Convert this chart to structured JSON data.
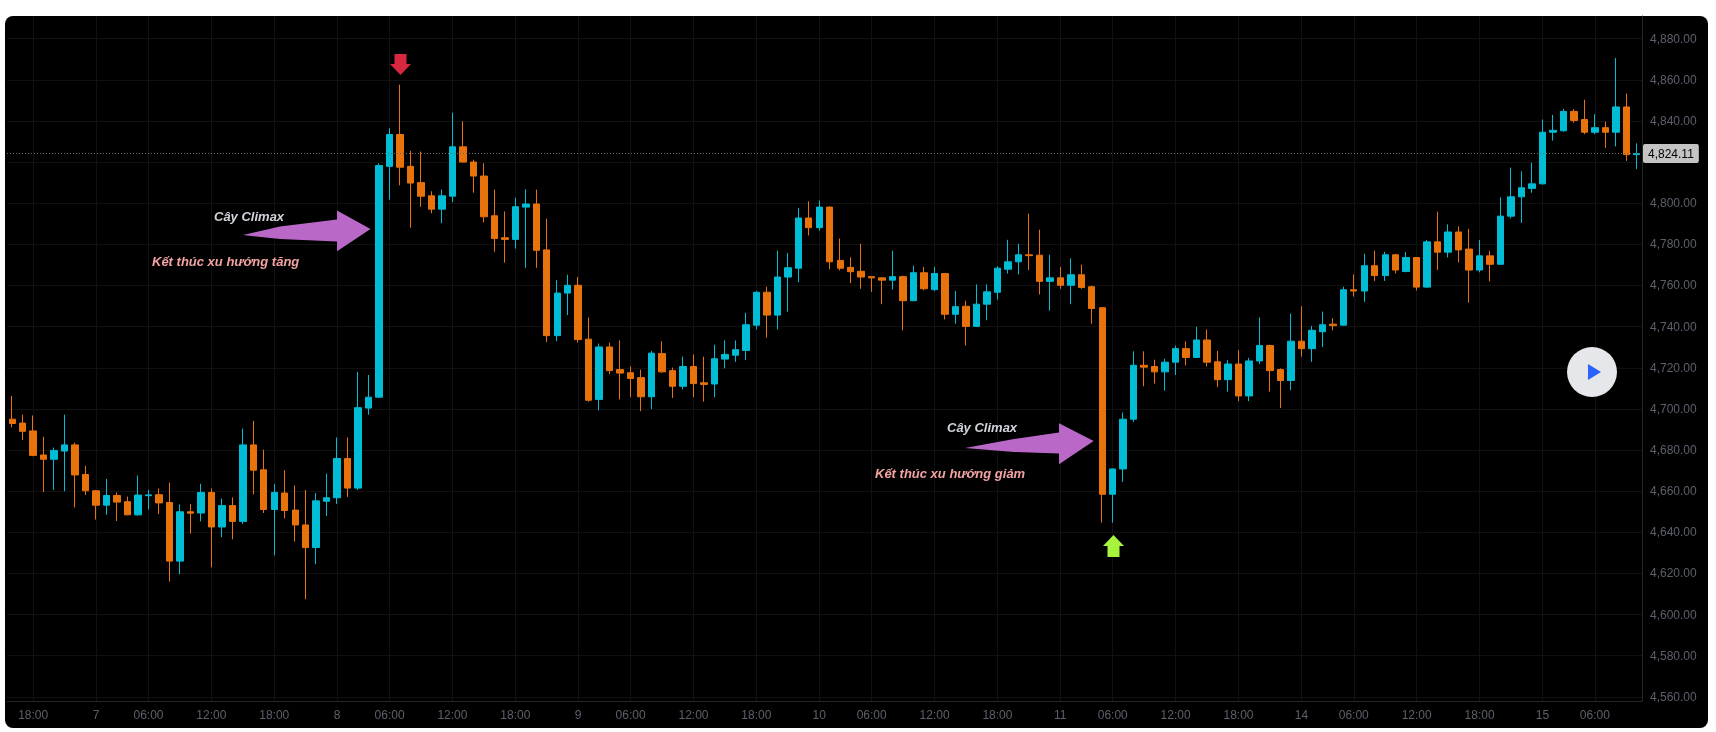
{
  "chart_data": {
    "type": "candlestick",
    "categories": [
      null,
      null,
      "18:00",
      null,
      null,
      null,
      null,
      null,
      "7",
      null,
      null,
      null,
      null,
      "06:00",
      null,
      null,
      null,
      null,
      null,
      "12:00",
      null,
      null,
      null,
      null,
      null,
      "18:00",
      null,
      null,
      null,
      null,
      null,
      "8",
      null,
      null,
      null,
      null,
      "06:00",
      null,
      null,
      null,
      null,
      null,
      "12:00",
      null,
      null,
      null,
      null,
      null,
      "18:00",
      null,
      null,
      null,
      null,
      null,
      "9",
      null,
      null,
      null,
      null,
      "06:00",
      null,
      null,
      null,
      null,
      null,
      "12:00",
      null,
      null,
      null,
      null,
      null,
      "18:00",
      null,
      null,
      null,
      null,
      null,
      "10",
      null,
      null,
      null,
      null,
      "06:00",
      null,
      null,
      null,
      null,
      null,
      "12:00",
      null,
      null,
      null,
      null,
      null,
      "18:00",
      null,
      null,
      null,
      null,
      null,
      "11",
      null,
      null,
      null,
      null,
      "06:00",
      null,
      null,
      null,
      null,
      null,
      "12:00",
      null,
      null,
      null,
      null,
      null,
      "18:00",
      null,
      null,
      null,
      null,
      null,
      "14",
      null,
      null,
      null,
      null,
      "06:00",
      null,
      null,
      null,
      null,
      null,
      "12:00",
      null,
      null,
      null,
      null,
      null,
      "18:00",
      null,
      null,
      null,
      null,
      null,
      "15",
      null,
      null,
      null,
      null,
      "06:00",
      null,
      null,
      null,
      null
    ],
    "ohlc": [
      [
        4695.0,
        4706.3,
        4691.0,
        4692.9
      ],
      [
        4693.1,
        4697.2,
        4684.9,
        4689.1
      ],
      [
        4689.3,
        4696.8,
        4677.0,
        4677.4
      ],
      [
        4677.6,
        4686.5,
        4659.6,
        4675.5
      ],
      [
        4675.5,
        4681.2,
        4660.6,
        4679.8
      ],
      [
        4679.5,
        4697.2,
        4660.0,
        4682.5
      ],
      [
        4682.5,
        4683.6,
        4652.1,
        4667.9
      ],
      [
        4668.1,
        4672.3,
        4658.1,
        4660.2
      ],
      [
        4660.2,
        4660.6,
        4646.2,
        4653.2
      ],
      [
        4653.2,
        4665.9,
        4648.5,
        4657.9
      ],
      [
        4657.9,
        4659.4,
        4645.5,
        4654.7
      ],
      [
        4654.9,
        4657.4,
        4648.3,
        4648.5
      ],
      [
        4648.5,
        4667.6,
        4648.0,
        4658.1
      ],
      [
        4657.8,
        4660.6,
        4651.1,
        4658.2
      ],
      [
        4658.3,
        4661.3,
        4648.9,
        4654.3
      ],
      [
        4654.5,
        4664.2,
        4616.0,
        4626.0
      ],
      [
        4626.0,
        4653.6,
        4619.6,
        4650.0
      ],
      [
        4650.0,
        4653.8,
        4639.4,
        4649.3
      ],
      [
        4649.4,
        4663.6,
        4645.3,
        4659.4
      ],
      [
        4659.4,
        4661.3,
        4623.0,
        4642.6
      ],
      [
        4642.6,
        4656.4,
        4637.7,
        4653.0
      ],
      [
        4653.0,
        4657.0,
        4636.6,
        4645.3
      ],
      [
        4645.3,
        4690.4,
        4644.0,
        4682.5
      ],
      [
        4682.5,
        4694.2,
        4658.5,
        4670.2
      ],
      [
        4670.4,
        4680.2,
        4649.4,
        4651.1
      ],
      [
        4651.1,
        4663.6,
        4628.8,
        4659.4
      ],
      [
        4659.1,
        4670.2,
        4646.8,
        4650.6
      ],
      [
        4650.8,
        4662.8,
        4635.5,
        4643.6
      ],
      [
        4643.6,
        4660.6,
        4607.5,
        4632.6
      ],
      [
        4632.6,
        4659.1,
        4624.5,
        4655.3
      ],
      [
        4655.1,
        4668.5,
        4647.9,
        4656.8
      ],
      [
        4656.8,
        4686.1,
        4653.8,
        4675.9
      ],
      [
        4675.9,
        4686.1,
        4657.2,
        4661.5
      ],
      [
        4661.5,
        4718.0,
        4660.6,
        4700.6
      ],
      [
        4700.4,
        4716.5,
        4697.2,
        4705.7
      ],
      [
        4705.7,
        4819.4,
        4705.5,
        4818.3
      ],
      [
        4817.9,
        4836.4,
        4801.7,
        4833.4
      ],
      [
        4833.4,
        4857.6,
        4808.7,
        4817.5
      ],
      [
        4817.9,
        4825.5,
        4788.1,
        4809.8
      ],
      [
        4810.0,
        4825.1,
        4798.3,
        4803.4
      ],
      [
        4803.6,
        4805.8,
        4795.1,
        4797.1
      ],
      [
        4797.1,
        4806.6,
        4790.3,
        4803.6
      ],
      [
        4803.4,
        4844.0,
        4800.5,
        4827.4
      ],
      [
        4827.4,
        4839.8,
        4819.8,
        4820.0
      ],
      [
        4820.0,
        4821.1,
        4805.1,
        4813.2
      ],
      [
        4813.2,
        4819.4,
        4790.7,
        4793.4
      ],
      [
        4793.9,
        4806.6,
        4776.4,
        4782.8
      ],
      [
        4783.2,
        4796.0,
        4771.1,
        4782.4
      ],
      [
        4782.4,
        4802.6,
        4777.9,
        4798.3
      ],
      [
        4798.1,
        4806.8,
        4768.6,
        4799.6
      ],
      [
        4799.6,
        4806.6,
        4768.6,
        4777.1
      ],
      [
        4777.3,
        4792.4,
        4732.5,
        4735.6
      ],
      [
        4735.6,
        4762.6,
        4732.9,
        4756.3
      ],
      [
        4756.3,
        4765.2,
        4745.6,
        4760.1
      ],
      [
        4760.1,
        4764.1,
        4732.2,
        4733.7
      ],
      [
        4733.9,
        4744.4,
        4703.5,
        4704.2
      ],
      [
        4704.6,
        4731.8,
        4699.3,
        4730.1
      ],
      [
        4730.1,
        4732.2,
        4716.9,
        4718.6
      ],
      [
        4719.1,
        4733.3,
        4704.6,
        4717.4
      ],
      [
        4717.6,
        4720.6,
        4705.7,
        4714.8
      ],
      [
        4715.2,
        4719.1,
        4698.9,
        4705.9
      ],
      [
        4705.9,
        4728.2,
        4699.9,
        4727.1
      ],
      [
        4726.9,
        4732.9,
        4717.6,
        4718.0
      ],
      [
        4718.6,
        4720.1,
        4705.3,
        4711.0
      ],
      [
        4711.0,
        4725.4,
        4709.5,
        4720.6
      ],
      [
        4720.6,
        4726.5,
        4705.7,
        4712.3
      ],
      [
        4712.7,
        4725.4,
        4703.5,
        4711.9
      ],
      [
        4712.1,
        4731.2,
        4705.7,
        4724.4
      ],
      [
        4724.2,
        4733.3,
        4719.7,
        4726.5
      ],
      [
        4726.1,
        4733.3,
        4722.9,
        4728.8
      ],
      [
        4728.4,
        4746.7,
        4723.7,
        4740.9
      ],
      [
        4740.7,
        4757.3,
        4738.6,
        4756.7
      ],
      [
        4756.7,
        4759.4,
        4734.6,
        4745.6
      ],
      [
        4745.6,
        4776.9,
        4738.6,
        4764.1
      ],
      [
        4764.1,
        4775.8,
        4747.3,
        4768.6
      ],
      [
        4768.4,
        4797.7,
        4761.6,
        4792.8
      ],
      [
        4792.8,
        4800.9,
        4784.3,
        4788.1
      ],
      [
        4788.1,
        4801.3,
        4786.6,
        4798.1
      ],
      [
        4798.1,
        4798.3,
        4767.9,
        4771.5
      ],
      [
        4772.2,
        4782.8,
        4767.3,
        4768.4
      ],
      [
        4768.8,
        4773.7,
        4761.1,
        4766.7
      ],
      [
        4766.9,
        4780.3,
        4758.4,
        4764.1
      ],
      [
        4764.3,
        4764.5,
        4756.9,
        4763.7
      ],
      [
        4763.7,
        4763.9,
        4750.9,
        4762.6
      ],
      [
        4762.6,
        4776.9,
        4758.0,
        4764.3
      ],
      [
        4764.3,
        4764.8,
        4738.2,
        4752.6
      ],
      [
        4752.6,
        4769.6,
        4752.4,
        4766.2
      ],
      [
        4766.2,
        4769.0,
        4757.7,
        4758.4
      ],
      [
        4758.0,
        4769.0,
        4757.3,
        4765.8
      ],
      [
        4765.8,
        4766.0,
        4743.5,
        4746.0
      ],
      [
        4746.0,
        4757.3,
        4741.4,
        4749.7
      ],
      [
        4749.9,
        4752.6,
        4730.8,
        4740.1
      ],
      [
        4740.1,
        4760.5,
        4739.9,
        4750.9
      ],
      [
        4750.9,
        4760.5,
        4743.1,
        4756.9
      ],
      [
        4756.7,
        4769.4,
        4753.1,
        4768.4
      ],
      [
        4767.9,
        4782.2,
        4765.8,
        4771.5
      ],
      [
        4771.5,
        4780.3,
        4765.4,
        4774.9
      ],
      [
        4774.9,
        4794.9,
        4767.5,
        4774.5
      ],
      [
        4774.7,
        4787.1,
        4755.6,
        4762.0
      ],
      [
        4762.0,
        4774.9,
        4747.8,
        4763.7
      ],
      [
        4763.7,
        4769.0,
        4758.4,
        4760.1
      ],
      [
        4760.1,
        4773.2,
        4750.9,
        4765.2
      ],
      [
        4765.2,
        4770.1,
        4758.4,
        4759.0
      ],
      [
        4759.4,
        4759.9,
        4741.4,
        4748.8
      ],
      [
        4749.2,
        4749.4,
        4644.7,
        4658.5
      ],
      [
        4658.5,
        4671.0,
        4644.7,
        4670.8
      ],
      [
        4670.8,
        4698.2,
        4664.5,
        4695.0
      ],
      [
        4695.0,
        4728.0,
        4693.6,
        4721.2
      ],
      [
        4721.2,
        4728.0,
        4711.0,
        4720.3
      ],
      [
        4720.6,
        4723.9,
        4712.3,
        4718.0
      ],
      [
        4718.0,
        4724.4,
        4708.9,
        4722.7
      ],
      [
        4722.7,
        4730.8,
        4716.5,
        4729.3
      ],
      [
        4729.3,
        4732.9,
        4721.2,
        4725.0
      ],
      [
        4725.0,
        4739.9,
        4724.8,
        4733.5
      ],
      [
        4733.5,
        4738.6,
        4720.6,
        4722.7
      ],
      [
        4722.9,
        4728.2,
        4710.6,
        4714.2
      ],
      [
        4714.2,
        4723.7,
        4708.4,
        4721.8
      ],
      [
        4721.8,
        4728.6,
        4703.8,
        4706.3
      ],
      [
        4706.3,
        4724.8,
        4703.8,
        4723.3
      ],
      [
        4723.3,
        4744.4,
        4721.8,
        4730.8
      ],
      [
        4730.8,
        4731.2,
        4708.4,
        4718.6
      ],
      [
        4719.1,
        4719.7,
        4700.4,
        4713.8
      ],
      [
        4713.8,
        4746.3,
        4709.1,
        4732.9
      ],
      [
        4732.9,
        4749.9,
        4725.4,
        4729.3
      ],
      [
        4729.3,
        4740.3,
        4722.9,
        4738.2
      ],
      [
        4737.5,
        4747.3,
        4730.1,
        4740.9
      ],
      [
        4741.2,
        4744.1,
        4738.2,
        4740.5
      ],
      [
        4740.7,
        4759.4,
        4740.5,
        4757.9
      ],
      [
        4757.9,
        4765.4,
        4754.6,
        4757.3
      ],
      [
        4757.3,
        4775.4,
        4752.0,
        4769.6
      ],
      [
        4769.6,
        4776.9,
        4762.2,
        4764.8
      ],
      [
        4764.8,
        4776.4,
        4762.2,
        4774.9
      ],
      [
        4774.9,
        4775.4,
        4765.8,
        4767.5
      ],
      [
        4766.8,
        4776.2,
        4766.4,
        4773.6
      ],
      [
        4773.6,
        4773.8,
        4757.6,
        4759.2
      ],
      [
        4759.2,
        4782.1,
        4759.0,
        4781.2
      ],
      [
        4781.2,
        4795.9,
        4767.5,
        4776.2
      ],
      [
        4776.2,
        4789.7,
        4773.6,
        4786.0
      ],
      [
        4786.0,
        4788.7,
        4771.2,
        4777.3
      ],
      [
        4777.7,
        4787.6,
        4751.7,
        4767.5
      ],
      [
        4767.5,
        4782.1,
        4766.4,
        4774.4
      ],
      [
        4774.4,
        4776.9,
        4762.0,
        4770.3
      ],
      [
        4770.3,
        4802.9,
        4770.1,
        4793.7
      ],
      [
        4793.7,
        4817.3,
        4792.6,
        4803.1
      ],
      [
        4803.1,
        4815.5,
        4790.4,
        4807.5
      ],
      [
        4807.2,
        4819.7,
        4805.1,
        4809.4
      ],
      [
        4809.4,
        4840.7,
        4809.2,
        4834.5
      ],
      [
        4834.5,
        4842.9,
        4830.4,
        4835.4
      ],
      [
        4835.2,
        4845.9,
        4834.8,
        4844.6
      ],
      [
        4844.6,
        4845.7,
        4839.1,
        4840.2
      ],
      [
        4840.7,
        4850.3,
        4833.5,
        4834.5
      ],
      [
        4834.5,
        4843.3,
        4833.5,
        4836.7
      ],
      [
        4836.7,
        4839.6,
        4826.9,
        4834.5
      ],
      [
        4834.5,
        4870.6,
        4827.6,
        4846.8
      ],
      [
        4846.8,
        4853.3,
        4820.6,
        4823.6
      ],
      [
        4823.6,
        4829.1,
        4816.6,
        4824.11
      ]
    ],
    "colors": [
      "#e8720c",
      "#e8720c",
      "#e8720c",
      "#e8720c",
      "#00bcd4",
      "#00bcd4",
      "#e8720c",
      "#e8720c",
      "#e8720c",
      "#00bcd4",
      "#e8720c",
      "#e8720c",
      "#00bcd4",
      "#00bcd4",
      "#e8720c",
      "#e8720c",
      "#00bcd4",
      "#e8720c",
      "#00bcd4",
      "#e8720c",
      "#00bcd4",
      "#e8720c",
      "#00bcd4",
      "#e8720c",
      "#e8720c",
      "#00bcd4",
      "#e8720c",
      "#e8720c",
      "#e8720c",
      "#00bcd4",
      "#00bcd4",
      "#00bcd4",
      "#e8720c",
      "#00bcd4",
      "#00bcd4",
      "#00bcd4",
      "#00bcd4",
      "#e8720c",
      "#e8720c",
      "#e8720c",
      "#e8720c",
      "#00bcd4",
      "#00bcd4",
      "#e8720c",
      "#e8720c",
      "#e8720c",
      "#e8720c",
      "#e8720c",
      "#00bcd4",
      "#00bcd4",
      "#e8720c",
      "#e8720c",
      "#00bcd4",
      "#00bcd4",
      "#e8720c",
      "#e8720c",
      "#00bcd4",
      "#e8720c",
      "#e8720c",
      "#e8720c",
      "#e8720c",
      "#00bcd4",
      "#e8720c",
      "#e8720c",
      "#00bcd4",
      "#e8720c",
      "#e8720c",
      "#00bcd4",
      "#00bcd4",
      "#00bcd4",
      "#00bcd4",
      "#00bcd4",
      "#e8720c",
      "#00bcd4",
      "#00bcd4",
      "#00bcd4",
      "#e8720c",
      "#00bcd4",
      "#e8720c",
      "#e8720c",
      "#e8720c",
      "#e8720c",
      "#e8720c",
      "#e8720c",
      "#00bcd4",
      "#e8720c",
      "#00bcd4",
      "#e8720c",
      "#00bcd4",
      "#e8720c",
      "#00bcd4",
      "#e8720c",
      "#00bcd4",
      "#00bcd4",
      "#00bcd4",
      "#00bcd4",
      "#00bcd4",
      "#e8720c",
      "#e8720c",
      "#00bcd4",
      "#e8720c",
      "#00bcd4",
      "#e8720c",
      "#e8720c",
      "#e8720c",
      "#00bcd4",
      "#00bcd4",
      "#00bcd4",
      "#e8720c",
      "#e8720c",
      "#00bcd4",
      "#00bcd4",
      "#e8720c",
      "#00bcd4",
      "#e8720c",
      "#e8720c",
      "#00bcd4",
      "#e8720c",
      "#00bcd4",
      "#00bcd4",
      "#e8720c",
      "#e8720c",
      "#00bcd4",
      "#e8720c",
      "#00bcd4",
      "#00bcd4",
      "#e8720c",
      "#00bcd4",
      "#e8720c",
      "#00bcd4",
      "#e8720c",
      "#00bcd4",
      "#e8720c",
      "#00bcd4",
      "#e8720c",
      "#00bcd4",
      "#e8720c",
      "#00bcd4",
      "#e8720c",
      "#e8720c",
      "#00bcd4",
      "#e8720c",
      "#00bcd4",
      "#00bcd4",
      "#00bcd4",
      "#00bcd4",
      "#00bcd4",
      "#00bcd4",
      "#00bcd4",
      "#e8720c",
      "#e8720c",
      "#00bcd4",
      "#e8720c",
      "#00bcd4",
      "#e8720c",
      "#00bcd4"
    ],
    "ylim": [
      4558,
      4891
    ],
    "yticks": [
      {
        "value": 4560,
        "label": "4,560.00"
      },
      {
        "value": 4580,
        "label": "4,580.00"
      },
      {
        "value": 4600,
        "label": "4,600.00"
      },
      {
        "value": 4620,
        "label": "4,620.00"
      },
      {
        "value": 4640,
        "label": "4,640.00"
      },
      {
        "value": 4660,
        "label": "4,660.00"
      },
      {
        "value": 4680,
        "label": "4,680.00"
      },
      {
        "value": 4700,
        "label": "4,700.00"
      },
      {
        "value": 4720,
        "label": "4,720.00"
      },
      {
        "value": 4740,
        "label": "4,740.00"
      },
      {
        "value": 4760,
        "label": "4,760.00"
      },
      {
        "value": 4780,
        "label": "4,780.00"
      },
      {
        "value": 4800,
        "label": "4,800.00"
      },
      {
        "value": 4820,
        "label": null
      },
      {
        "value": 4840,
        "label": "4,840.00"
      },
      {
        "value": 4860,
        "label": "4,860.00"
      },
      {
        "value": 4880,
        "label": "4,880.00"
      }
    ],
    "grid": true,
    "ref_lines": [
      {
        "axis": "y",
        "value": 4824.11,
        "label": "4,824.11",
        "color": "#6b6b6b",
        "line_style": "dotted"
      }
    ],
    "annotations": [
      "Cây Climax",
      "Kết thúc xu hướng tăng",
      "Cây Climax",
      "Kết thúc xu hướng giảm"
    ]
  }
}
